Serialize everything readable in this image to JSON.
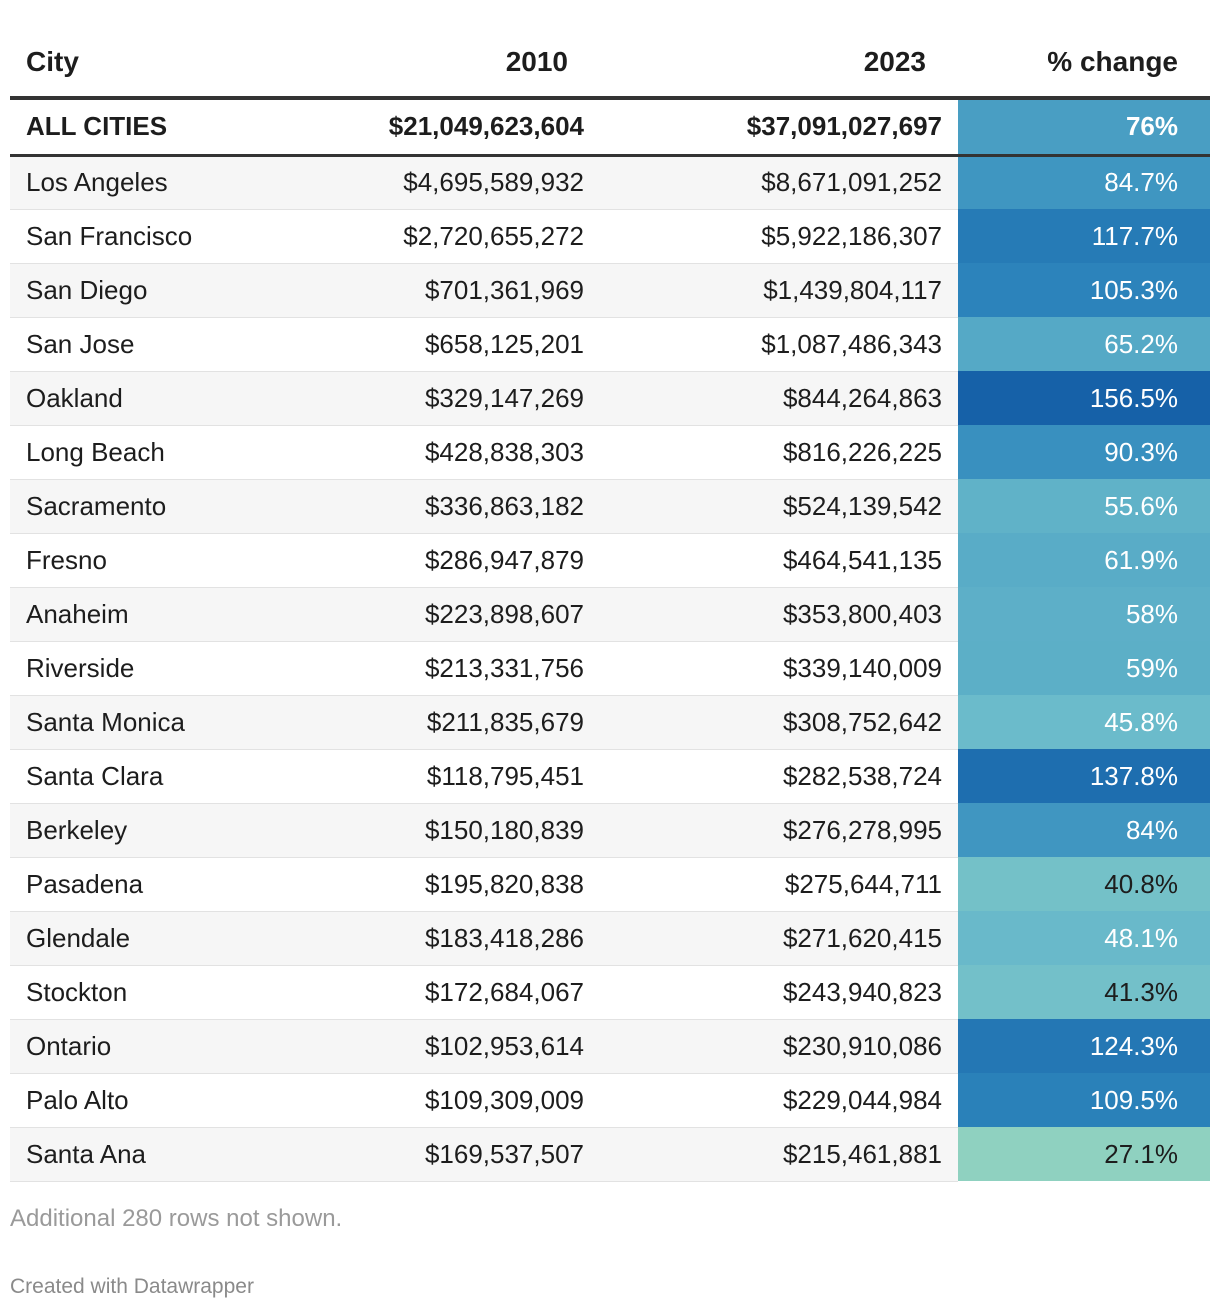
{
  "chart_data": {
    "type": "table",
    "columns": [
      "City",
      "2010",
      "2023",
      "% change"
    ],
    "total": {
      "city": "ALL CITIES",
      "y2010": "$21,049,623,604",
      "y2023": "$37,091,027,697",
      "pct": "76%",
      "pct_value": 76
    },
    "rows": [
      {
        "city": "Los Angeles",
        "y2010": "$4,695,589,932",
        "y2023": "$8,671,091,252",
        "pct": "84.7%",
        "pct_value": 84.7
      },
      {
        "city": "San Francisco",
        "y2010": "$2,720,655,272",
        "y2023": "$5,922,186,307",
        "pct": "117.7%",
        "pct_value": 117.7
      },
      {
        "city": "San Diego",
        "y2010": "$701,361,969",
        "y2023": "$1,439,804,117",
        "pct": "105.3%",
        "pct_value": 105.3
      },
      {
        "city": "San Jose",
        "y2010": "$658,125,201",
        "y2023": "$1,087,486,343",
        "pct": "65.2%",
        "pct_value": 65.2
      },
      {
        "city": "Oakland",
        "y2010": "$329,147,269",
        "y2023": "$844,264,863",
        "pct": "156.5%",
        "pct_value": 156.5
      },
      {
        "city": "Long Beach",
        "y2010": "$428,838,303",
        "y2023": "$816,226,225",
        "pct": "90.3%",
        "pct_value": 90.3
      },
      {
        "city": "Sacramento",
        "y2010": "$336,863,182",
        "y2023": "$524,139,542",
        "pct": "55.6%",
        "pct_value": 55.6
      },
      {
        "city": "Fresno",
        "y2010": "$286,947,879",
        "y2023": "$464,541,135",
        "pct": "61.9%",
        "pct_value": 61.9
      },
      {
        "city": "Anaheim",
        "y2010": "$223,898,607",
        "y2023": "$353,800,403",
        "pct": "58%",
        "pct_value": 58
      },
      {
        "city": "Riverside",
        "y2010": "$213,331,756",
        "y2023": "$339,140,009",
        "pct": "59%",
        "pct_value": 59
      },
      {
        "city": "Santa Monica",
        "y2010": "$211,835,679",
        "y2023": "$308,752,642",
        "pct": "45.8%",
        "pct_value": 45.8
      },
      {
        "city": "Santa Clara",
        "y2010": "$118,795,451",
        "y2023": "$282,538,724",
        "pct": "137.8%",
        "pct_value": 137.8
      },
      {
        "city": "Berkeley",
        "y2010": "$150,180,839",
        "y2023": "$276,278,995",
        "pct": "84%",
        "pct_value": 84
      },
      {
        "city": "Pasadena",
        "y2010": "$195,820,838",
        "y2023": "$275,644,711",
        "pct": "40.8%",
        "pct_value": 40.8
      },
      {
        "city": "Glendale",
        "y2010": "$183,418,286",
        "y2023": "$271,620,415",
        "pct": "48.1%",
        "pct_value": 48.1
      },
      {
        "city": "Stockton",
        "y2010": "$172,684,067",
        "y2023": "$243,940,823",
        "pct": "41.3%",
        "pct_value": 41.3
      },
      {
        "city": "Ontario",
        "y2010": "$102,953,614",
        "y2023": "$230,910,086",
        "pct": "124.3%",
        "pct_value": 124.3
      },
      {
        "city": "Palo Alto",
        "y2010": "$109,309,009",
        "y2023": "$229,044,984",
        "pct": "109.5%",
        "pct_value": 109.5
      },
      {
        "city": "Santa Ana",
        "y2010": "$169,537,507",
        "y2023": "$215,461,881",
        "pct": "27.1%",
        "pct_value": 27.1
      }
    ],
    "heatmap_colors": {
      "low": "#8fd1c0",
      "mid": "#6cbccb",
      "high": "#2e87bd",
      "max": "#1661a8",
      "dark_text": "#1d1d1d",
      "light_text": "#ffffff"
    }
  },
  "footer": {
    "note": "Additional 280 rows not shown.",
    "credit": "Created with Datawrapper"
  }
}
